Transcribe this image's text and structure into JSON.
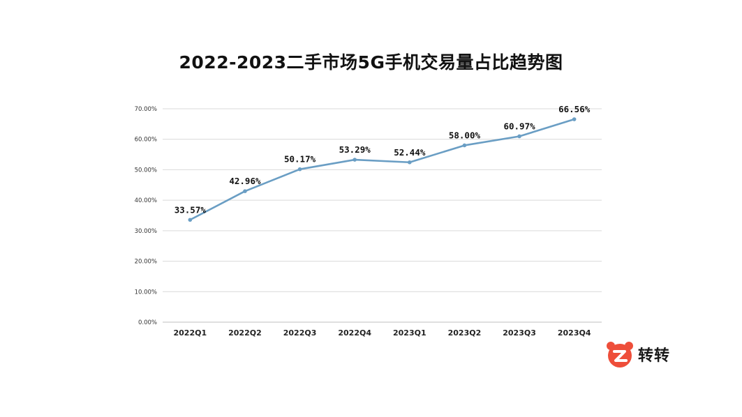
{
  "title": "2022-2023二手市场5G手机交易量占比趋势图",
  "brand": {
    "name": "转转",
    "icon": "zhuanzhuan-bear-logo-icon",
    "color": "#ee4e3a"
  },
  "chart_data": {
    "type": "line",
    "title": "2022-2023二手市场5G手机交易量占比趋势图",
    "xlabel": "",
    "ylabel": "",
    "categories": [
      "2022Q1",
      "2022Q2",
      "2022Q3",
      "2022Q4",
      "2023Q1",
      "2023Q2",
      "2023Q3",
      "2023Q4"
    ],
    "series": [
      {
        "values": [
          33.57,
          42.96,
          50.17,
          53.29,
          52.44,
          58.0,
          60.97,
          66.56
        ],
        "labels": [
          "33.57%",
          "42.96%",
          "50.17%",
          "53.29%",
          "52.44%",
          "58.00%",
          "60.97%",
          "66.56%"
        ],
        "color": "#6a9ec4"
      }
    ],
    "ylim": [
      0,
      70
    ],
    "yticks": [
      0,
      10,
      20,
      30,
      40,
      50,
      60,
      70
    ],
    "ytick_labels": [
      "0.00%",
      "10.00%",
      "20.00%",
      "30.00%",
      "40.00%",
      "50.00%",
      "60.00%",
      "70.00%"
    ],
    "grid": true,
    "legend": "none"
  }
}
